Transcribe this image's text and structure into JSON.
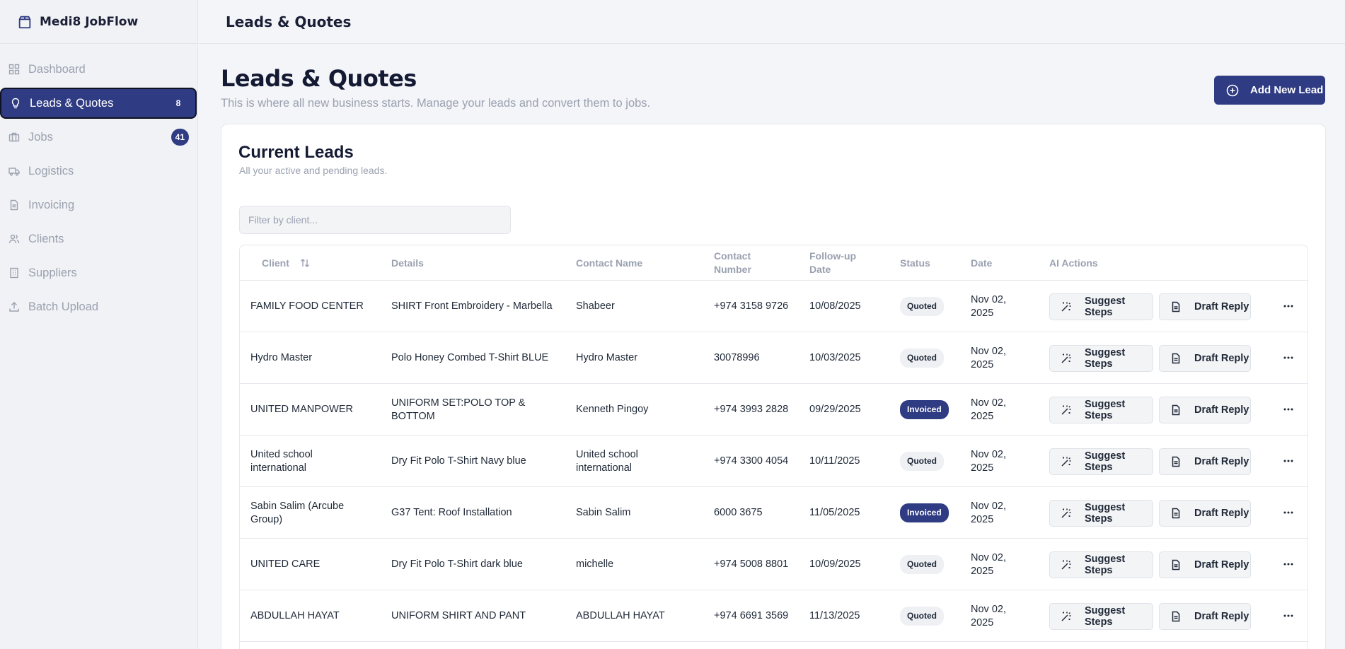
{
  "app": {
    "name": "Medi8 JobFlow"
  },
  "sidebar": {
    "items": [
      {
        "label": "Dashboard",
        "icon": "dashboard-icon"
      },
      {
        "label": "Leads & Quotes",
        "icon": "lightbulb-icon",
        "badge": "8",
        "active": true
      },
      {
        "label": "Jobs",
        "icon": "briefcase-icon",
        "badge": "41"
      },
      {
        "label": "Logistics",
        "icon": "truck-icon"
      },
      {
        "label": "Invoicing",
        "icon": "document-icon"
      },
      {
        "label": "Clients",
        "icon": "users-icon"
      },
      {
        "label": "Suppliers",
        "icon": "building-icon"
      },
      {
        "label": "Batch Upload",
        "icon": "upload-icon"
      }
    ]
  },
  "topbar": {
    "title": "Leads & Quotes"
  },
  "header": {
    "title": "Leads & Quotes",
    "subtitle": "This is where all new business starts. Manage your leads and convert them to jobs.",
    "add_button": "Add New Lead"
  },
  "card": {
    "title": "Current Leads",
    "subtitle": "All your active and pending leads.",
    "filter_placeholder": "Filter by client..."
  },
  "table": {
    "columns": {
      "client": "Client",
      "details": "Details",
      "contact_name": "Contact Name",
      "contact_number_1": "Contact",
      "contact_number_2": "Number",
      "followup_1": "Follow-up",
      "followup_2": "Date",
      "status": "Status",
      "date": "Date",
      "ai_actions": "AI Actions"
    },
    "action_labels": {
      "suggest": "Suggest Steps",
      "draft": "Draft Reply"
    },
    "rows": [
      {
        "client": "FAMILY FOOD CENTER",
        "details": "SHIRT Front Embroidery - Marbella",
        "contact_name": "Shabeer",
        "contact_number": "+974 3158 9726",
        "followup": "10/08/2025",
        "status": "Quoted",
        "date_1": "Nov 02,",
        "date_2": "2025"
      },
      {
        "client": "Hydro Master",
        "details": "Polo Honey Combed T-Shirt BLUE",
        "contact_name": "Hydro Master",
        "contact_number": "30078996",
        "followup": "10/03/2025",
        "status": "Quoted",
        "date_1": "Nov 02,",
        "date_2": "2025"
      },
      {
        "client": "UNITED MANPOWER",
        "details": "UNIFORM SET:POLO TOP & BOTTOM",
        "contact_name": "Kenneth Pingoy",
        "contact_number": "+974 3993 2828",
        "followup": "09/29/2025",
        "status": "Invoiced",
        "date_1": "Nov 02,",
        "date_2": "2025"
      },
      {
        "client": "United school international",
        "details": "Dry Fit Polo T-Shirt Navy blue",
        "contact_name": "United school international",
        "contact_number": "+974 3300 4054",
        "followup": "10/11/2025",
        "status": "Quoted",
        "date_1": "Nov 02,",
        "date_2": "2025"
      },
      {
        "client": "Sabin Salim (Arcube Group)",
        "details": "G37 Tent: Roof Installation",
        "contact_name": "Sabin Salim",
        "contact_number": "6000 3675",
        "followup": "11/05/2025",
        "status": "Invoiced",
        "date_1": "Nov 02,",
        "date_2": "2025"
      },
      {
        "client": "UNITED CARE",
        "details": "Dry Fit Polo T-Shirt dark blue",
        "contact_name": "michelle",
        "contact_number": "+974 5008 8801",
        "followup": "10/09/2025",
        "status": "Quoted",
        "date_1": "Nov 02,",
        "date_2": "2025"
      },
      {
        "client": "ABDULLAH HAYAT",
        "details": "UNIFORM SHIRT AND PANT",
        "contact_name": "ABDULLAH HAYAT",
        "contact_number": "+974 6691 3569",
        "followup": "11/13/2025",
        "status": "Quoted",
        "date_1": "Nov 02,",
        "date_2": "2025"
      }
    ]
  },
  "colors": {
    "accent": "#2f3b82",
    "muted_text": "#9aa1b0",
    "background": "#f4f5f8"
  }
}
